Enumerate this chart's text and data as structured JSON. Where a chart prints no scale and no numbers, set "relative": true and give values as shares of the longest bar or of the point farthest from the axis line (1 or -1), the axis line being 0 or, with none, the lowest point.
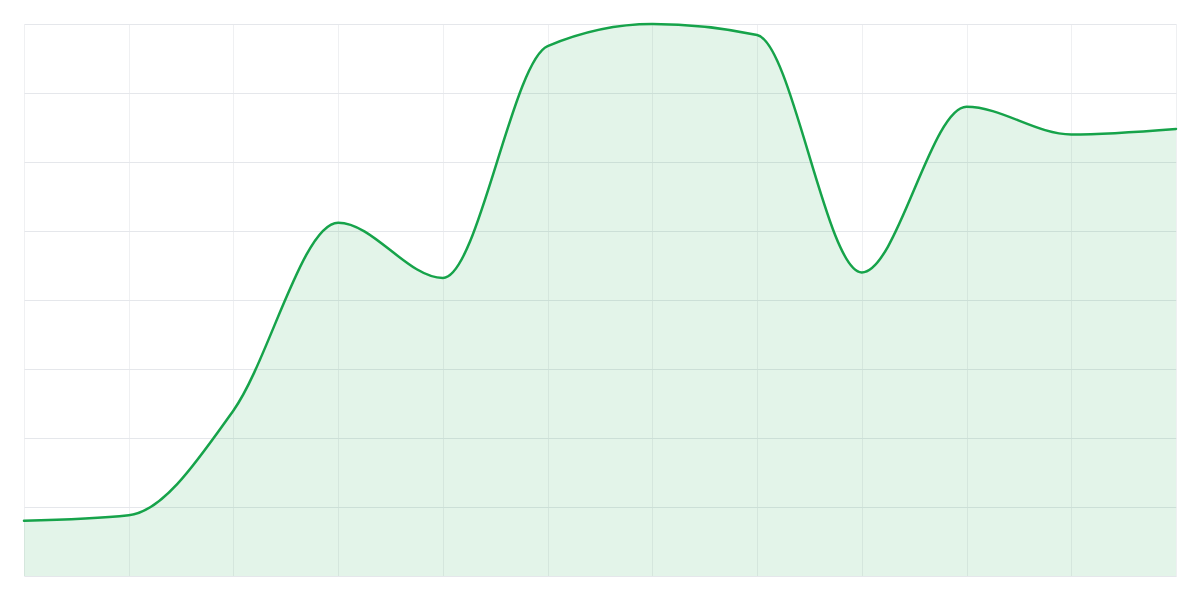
{
  "chart_data": {
    "type": "area",
    "relative": true,
    "categories": [
      null,
      null,
      null,
      null,
      null,
      null,
      null,
      null,
      null,
      null,
      null,
      null
    ],
    "series": [
      {
        "color": "#16a34a",
        "values": [
          0.1,
          0.11,
          0.3,
          0.64,
          0.54,
          0.96,
          1,
          0.98,
          0.55,
          0.85,
          0.8,
          0.81
        ]
      }
    ],
    "grid": true,
    "tick_labels": false
  }
}
